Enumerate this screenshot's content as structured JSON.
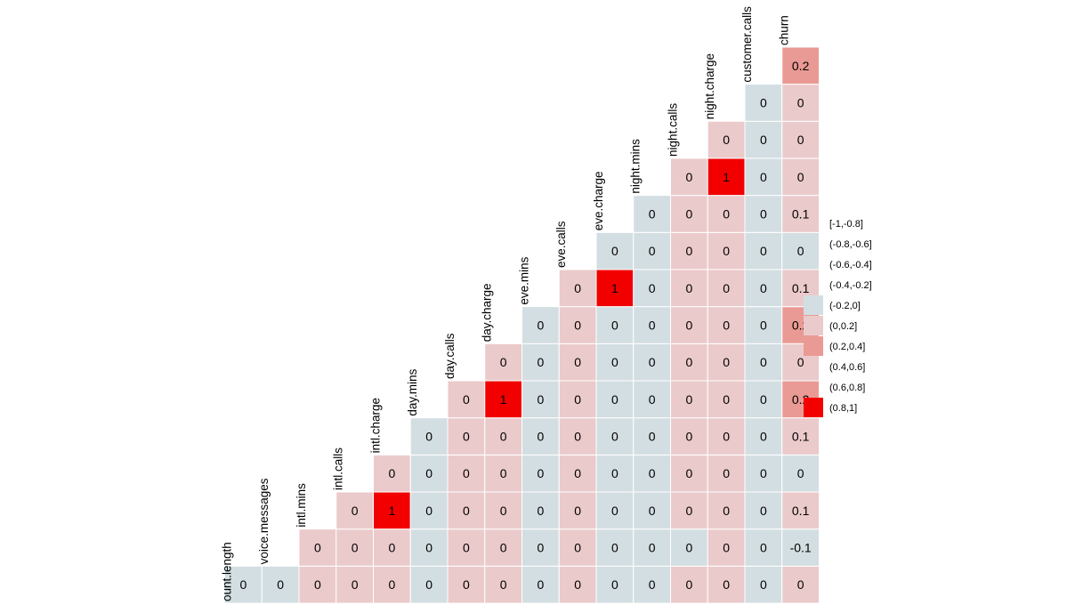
{
  "chart_data": {
    "type": "heatmap",
    "variables": [
      "ount.length",
      "voice.messages",
      "intl.mins",
      "intl.calls",
      "intl.charge",
      "day.mins",
      "day.calls",
      "day.charge",
      "eve.mins",
      "eve.calls",
      "eve.charge",
      "night.mins",
      "night.calls",
      "night.charge",
      "customer.calls",
      "churn"
    ],
    "matrix": [
      [
        null
      ],
      [
        "0",
        null
      ],
      [
        "0",
        "0",
        null
      ],
      [
        "0",
        "0",
        "0",
        null
      ],
      [
        "0",
        "0",
        "1",
        "0",
        null
      ],
      [
        "0",
        "0",
        "0",
        "0",
        "0",
        null
      ],
      [
        "0",
        "0",
        "0",
        "0",
        "0",
        "0",
        null
      ],
      [
        "0",
        "0",
        "0",
        "0",
        "0",
        "1",
        "0",
        null
      ],
      [
        "0",
        "0",
        "0",
        "0",
        "0",
        "0",
        "0",
        "0",
        null
      ],
      [
        "0",
        "0",
        "0",
        "0",
        "0",
        "0",
        "0",
        "0",
        "0",
        null
      ],
      [
        "0",
        "0",
        "0",
        "0",
        "0",
        "0",
        "0",
        "0",
        "1",
        "0",
        null
      ],
      [
        "0",
        "0",
        "0",
        "0",
        "0",
        "0",
        "0",
        "0",
        "0",
        "0",
        "0",
        null
      ],
      [
        "0",
        "0",
        "0",
        "0",
        "0",
        "0",
        "0",
        "0",
        "0",
        "0",
        "0",
        "0",
        null
      ],
      [
        "0",
        "0",
        "0",
        "0",
        "0",
        "0",
        "0",
        "0",
        "0",
        "0",
        "0",
        "1",
        "0",
        null
      ],
      [
        "0",
        "0",
        "0",
        "0",
        "0",
        "0",
        "0",
        "0",
        "0",
        "0",
        "0",
        "0",
        "0",
        "0",
        null
      ],
      [
        "0",
        "-0.1",
        "0.1",
        "0",
        "0.1",
        "0.2",
        "0",
        "0.2",
        "0.1",
        "0",
        "0.1",
        "0",
        "0",
        "0",
        "0.2"
      ]
    ],
    "bins": [
      [
        null,
        null,
        null,
        null
      ],
      [
        null,
        null,
        null,
        null,
        null
      ],
      [
        "-0.2,0",
        "0,0.2",
        "0,0.2",
        "0,0.2"
      ],
      [
        "0,0.2",
        "0,0.2",
        "0.8,1",
        "0,0.2",
        "0,0.2"
      ]
    ],
    "cell_bins": [
      [],
      [
        "-0.2,0"
      ],
      [
        "0,0.2",
        "0,0.2"
      ],
      [
        "0,0.2",
        "0,0.2",
        "0,0.2"
      ],
      [
        "0,0.2",
        "0,0.2",
        "0.8,1",
        "0,0.2"
      ],
      [
        "-0.2,0",
        "-0.2,0",
        "-0.2,0",
        "-0.2,0",
        "-0.2,0"
      ],
      [
        "0,0.2",
        "0,0.2",
        "0,0.2",
        "0,0.2",
        "0,0.2",
        "0,0.2"
      ],
      [
        "0,0.2",
        "0,0.2",
        "0,0.2",
        "0,0.2",
        "0,0.2",
        "0.8,1",
        "0,0.2"
      ],
      [
        "-0.2,0",
        "-0.2,0",
        "-0.2,0",
        "-0.2,0",
        "-0.2,0",
        "-0.2,0",
        "-0.2,0",
        "-0.2,0"
      ],
      [
        "0,0.2",
        "0,0.2",
        "0,0.2",
        "0,0.2",
        "0,0.2",
        "0,0.2",
        "0,0.2",
        "0,0.2",
        "0,0.2"
      ],
      [
        "-0.2,0",
        "-0.2,0",
        "-0.2,0",
        "-0.2,0",
        "-0.2,0",
        "-0.2,0",
        "-0.2,0",
        "-0.2,0",
        "0.8,1",
        "-0.2,0"
      ],
      [
        "-0.2,0",
        "-0.2,0",
        "-0.2,0",
        "-0.2,0",
        "-0.2,0",
        "-0.2,0",
        "-0.2,0",
        "-0.2,0",
        "-0.2,0",
        "-0.2,0",
        "-0.2,0"
      ],
      [
        "0,0.2",
        "-0.2,0",
        "0,0.2",
        "0,0.2",
        "0,0.2",
        "0,0.2",
        "0,0.2",
        "0,0.2",
        "0,0.2",
        "0,0.2",
        "0,0.2",
        "0,0.2"
      ],
      [
        "0,0.2",
        "0,0.2",
        "0,0.2",
        "0,0.2",
        "0,0.2",
        "0,0.2",
        "0,0.2",
        "0,0.2",
        "0,0.2",
        "0,0.2",
        "0,0.2",
        "0.8,1",
        "0,0.2"
      ],
      [
        "-0.2,0",
        "-0.2,0",
        "-0.2,0",
        "-0.2,0",
        "-0.2,0",
        "-0.2,0",
        "-0.2,0",
        "-0.2,0",
        "-0.2,0",
        "-0.2,0",
        "-0.2,0",
        "-0.2,0",
        "-0.2,0",
        "-0.2,0"
      ],
      [
        "0,0.2",
        "-0.2,0",
        "0,0.2",
        "-0.2,0",
        "0,0.2",
        "0.2,0.4",
        "0,0.2",
        "0.2,0.4",
        "0,0.2",
        "-0.2,0",
        "0,0.2",
        "0,0.2",
        "0,0.2",
        "0,0.2",
        "0.2,0.4"
      ]
    ],
    "legend": {
      "placement": "right",
      "entries": [
        {
          "label": "[-1,-0.8]",
          "color": null
        },
        {
          "label": "(-0.8,-0.6]",
          "color": null
        },
        {
          "label": "(-0.6,-0.4]",
          "color": null
        },
        {
          "label": "(-0.4,-0.2]",
          "color": null
        },
        {
          "label": "(-0.2,0]",
          "color": "#d3dee2"
        },
        {
          "label": "(0,0.2]",
          "color": "#ebcacb"
        },
        {
          "label": "(0.2,0.4]",
          "color": "#ea9a94"
        },
        {
          "label": "(0.4,0.6]",
          "color": null
        },
        {
          "label": "(0.6,0.8]",
          "color": null
        },
        {
          "label": "(0.8,1]",
          "color": "#f20000"
        }
      ]
    },
    "bin_colors": {
      "-0.2,0": "#d3dee2",
      "0,0.2": "#ebcacb",
      "0.2,0.4": "#ea9a94",
      "0.8,1": "#f20000"
    },
    "grid": false
  }
}
